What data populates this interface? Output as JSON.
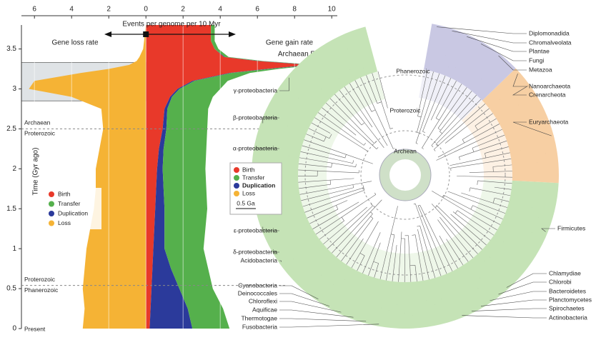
{
  "chart_data": {
    "type": "stacked-area",
    "orientation": "horizontal",
    "x_label": "Events per genome per 10 Myr",
    "y_label": "Time (Gyr ago)",
    "left_label": "Gene loss rate",
    "right_label": "Gene gain rate",
    "annotation": "Archaean Expansion",
    "expansion_span": [
      2.85,
      3.33
    ],
    "present_label": "Present",
    "era_boundaries": [
      {
        "value": 2.5,
        "above": "Archaean",
        "below": "Proterozoic"
      },
      {
        "value": 0.54,
        "above": "Proterozoic",
        "below": "Phanerozoic"
      }
    ],
    "y": [
      0,
      0.25,
      0.5,
      0.75,
      1,
      1.25,
      1.5,
      1.75,
      2,
      2.25,
      2.5,
      2.75,
      2.9,
      3.0,
      3.1,
      3.2,
      3.25,
      3.3,
      3.35,
      3.4,
      3.5,
      3.6,
      3.8
    ],
    "series": [
      {
        "name": "Birth",
        "color": "#e8392a",
        "values": [
          0.2,
          0.25,
          0.3,
          0.35,
          0.4,
          0.45,
          0.5,
          0.55,
          0.6,
          0.7,
          0.9,
          1.0,
          1.3,
          1.7,
          2.5,
          4.5,
          6.5,
          8.8,
          6.0,
          4.2,
          3.7,
          3.5,
          3.5
        ]
      },
      {
        "name": "Transfer",
        "color": "#55b04c",
        "values": [
          2.0,
          1.9,
          1.8,
          2.0,
          2.1,
          2.2,
          2.3,
          2.3,
          2.3,
          2.3,
          2.2,
          2.2,
          2.2,
          2.2,
          1.8,
          1.0,
          0.5,
          0.2,
          0.2,
          0.2,
          0.2,
          0.2,
          0.2
        ]
      },
      {
        "name": "Duplication",
        "color": "#2b3a9b",
        "values": [
          2.3,
          2.0,
          1.5,
          1.0,
          0.6,
          0.55,
          0.5,
          0.4,
          0.3,
          0.25,
          0.2,
          0.15,
          0.1,
          0.1,
          0.1,
          0.1,
          0.15,
          0.2,
          0.1,
          0.05,
          0,
          0,
          0
        ]
      },
      {
        "name": "Loss",
        "color": "#f5b335",
        "values": [
          -3.4,
          -3.3,
          -3.4,
          -3.3,
          -3.2,
          -3.0,
          -2.8,
          -2.7,
          -2.7,
          -2.5,
          -2.3,
          -2.4,
          -4.0,
          -6.3,
          -6.0,
          -3.5,
          -2.0,
          -0.9,
          -0.5,
          -0.35,
          -0.15,
          -0.1,
          0
        ]
      }
    ],
    "stack_order": [
      0,
      2,
      1
    ],
    "xlim": [
      -6.7,
      10.3
    ],
    "ylim": [
      0,
      3.8
    ],
    "xticks": [
      {
        "value": -6,
        "label": "6"
      },
      {
        "value": -4,
        "label": "4"
      },
      {
        "value": -2,
        "label": "2"
      },
      0,
      2,
      4,
      6,
      8,
      10
    ],
    "yticks": [
      0,
      0.5,
      1.0,
      1.5,
      2.0,
      2.5,
      3.0,
      3.5
    ],
    "grid": true
  },
  "tree": {
    "era_labels": [
      "Phanerozoic",
      "Proterozoic",
      "Archean"
    ],
    "legend": [
      "Birth",
      "Transfer",
      "Duplication",
      "Loss"
    ],
    "scale_label": "0.5 Ga",
    "clades_right": [
      "Diplomonadida",
      "Chromalveolata",
      "Plantae",
      "Fungi",
      "Metazoa",
      "Nanoarchaeota",
      "Crenarcheota",
      "Euryarchaeota",
      "Firmicutes",
      "Chlamydiae",
      "Chlorobi",
      "Bacteroidetes",
      "Planctomycetes",
      "Spirochaetes",
      "Actinobacteria"
    ],
    "clades_left": [
      "γ-proteobacteria",
      "β-proteobacteria",
      "α-proteobacteria",
      "ε-proteobacteria",
      "δ-proteobacteria",
      "Acidobacteria",
      "Cyanobacteria",
      "Deinococcales",
      "Chloroflexi",
      "Aquificae",
      "Thermotogae",
      "Fusobacteria"
    ]
  }
}
